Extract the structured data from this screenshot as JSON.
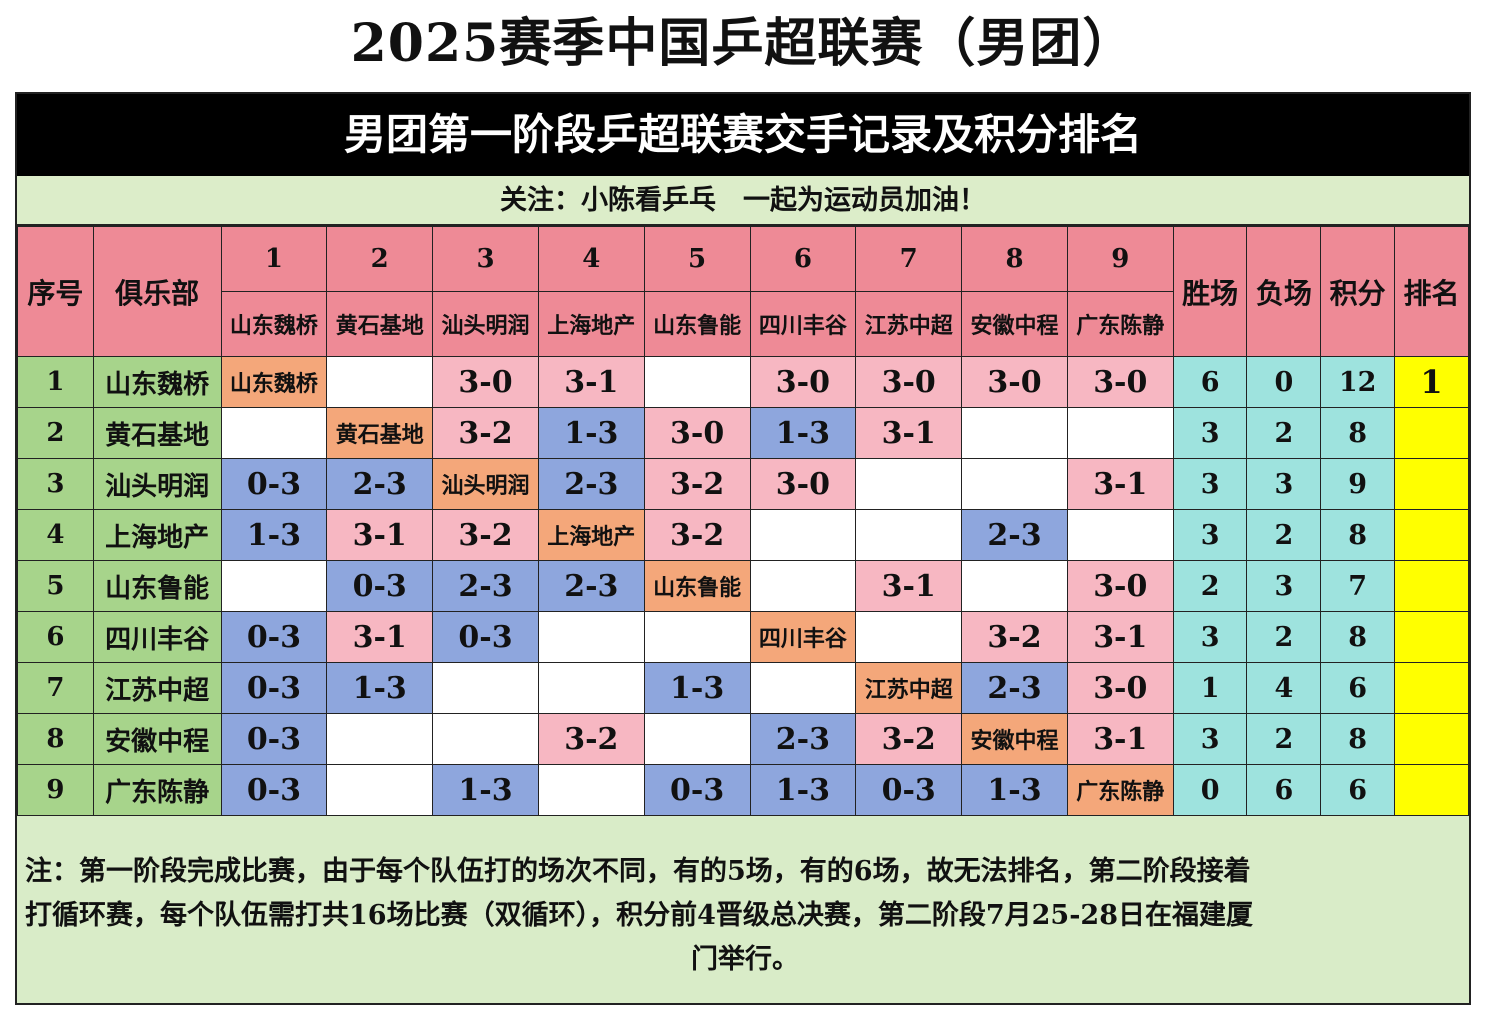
{
  "title": "2025赛季中国乒超联赛（男团）",
  "banner": "男团第一阶段乒超联赛交手记录及积分排名",
  "follow": "关注：小陈看乒乓　一起为运动员加油！",
  "headers": {
    "index": "序号",
    "club": "俱乐部",
    "wins": "胜场",
    "losses": "负场",
    "points": "积分",
    "rank": "排名",
    "opponent_numbers": [
      "1",
      "2",
      "3",
      "4",
      "5",
      "6",
      "7",
      "8",
      "9"
    ]
  },
  "teams": [
    "山东魏桥",
    "黄石基地",
    "汕头明润",
    "上海地产",
    "山东鲁能",
    "四川丰谷",
    "江苏中超",
    "安徽中程",
    "广东陈静"
  ],
  "rows": [
    {
      "index": "1",
      "club": "山东魏桥",
      "results": [
        "self",
        "",
        "3-0",
        "3-1",
        "",
        "3-0",
        "3-0",
        "3-0",
        "3-0"
      ],
      "wins": "6",
      "losses": "0",
      "points": "12",
      "rank": "1"
    },
    {
      "index": "2",
      "club": "黄石基地",
      "results": [
        "",
        "self",
        "3-2",
        "1-3",
        "3-0",
        "1-3",
        "3-1",
        "",
        ""
      ],
      "wins": "3",
      "losses": "2",
      "points": "8",
      "rank": ""
    },
    {
      "index": "3",
      "club": "汕头明润",
      "results": [
        "0-3",
        "2-3",
        "self",
        "2-3",
        "3-2",
        "3-0",
        "",
        "",
        "3-1"
      ],
      "wins": "3",
      "losses": "3",
      "points": "9",
      "rank": ""
    },
    {
      "index": "4",
      "club": "上海地产",
      "results": [
        "1-3",
        "3-1",
        "3-2",
        "self",
        "3-2",
        "",
        "",
        "2-3",
        ""
      ],
      "wins": "3",
      "losses": "2",
      "points": "8",
      "rank": ""
    },
    {
      "index": "5",
      "club": "山东鲁能",
      "results": [
        "",
        "0-3",
        "2-3",
        "2-3",
        "self",
        "",
        "3-1",
        "",
        "3-0"
      ],
      "wins": "2",
      "losses": "3",
      "points": "7",
      "rank": ""
    },
    {
      "index": "6",
      "club": "四川丰谷",
      "results": [
        "0-3",
        "3-1",
        "0-3",
        "",
        "",
        "self",
        "",
        "3-2",
        "3-1"
      ],
      "wins": "3",
      "losses": "2",
      "points": "8",
      "rank": ""
    },
    {
      "index": "7",
      "club": "江苏中超",
      "results": [
        "0-3",
        "1-3",
        "",
        "",
        "1-3",
        "",
        "self",
        "2-3",
        "3-0"
      ],
      "wins": "1",
      "losses": "4",
      "points": "6",
      "rank": ""
    },
    {
      "index": "8",
      "club": "安徽中程",
      "results": [
        "0-3",
        "",
        "",
        "3-2",
        "",
        "2-3",
        "3-2",
        "self",
        "3-1"
      ],
      "wins": "3",
      "losses": "2",
      "points": "8",
      "rank": ""
    },
    {
      "index": "9",
      "club": "广东陈静",
      "results": [
        "0-3",
        "",
        "1-3",
        "",
        "0-3",
        "1-3",
        "0-3",
        "1-3",
        "self"
      ],
      "wins": "0",
      "losses": "6",
      "points": "6",
      "rank": ""
    }
  ],
  "note": {
    "line1": "注：第一阶段完成比赛，由于每个队伍打的场次不同，有的5场，有的6场，故无法排名，第二阶段接着",
    "line2": "打循环赛，每个队伍需打共16场比赛（双循环），积分前4晋级总决赛，第二阶段7月25-28日在福建厦",
    "line3": "门举行。"
  },
  "colors": {
    "header": "#ee8a96",
    "club_column": "#a7d48b",
    "self_cell": "#f4a77a",
    "win_cell": "#f7b7c2",
    "loss_cell": "#8ea6dd",
    "stats": "#9ee3de",
    "rank": "#ffff00",
    "background": "#d9ecc8"
  }
}
